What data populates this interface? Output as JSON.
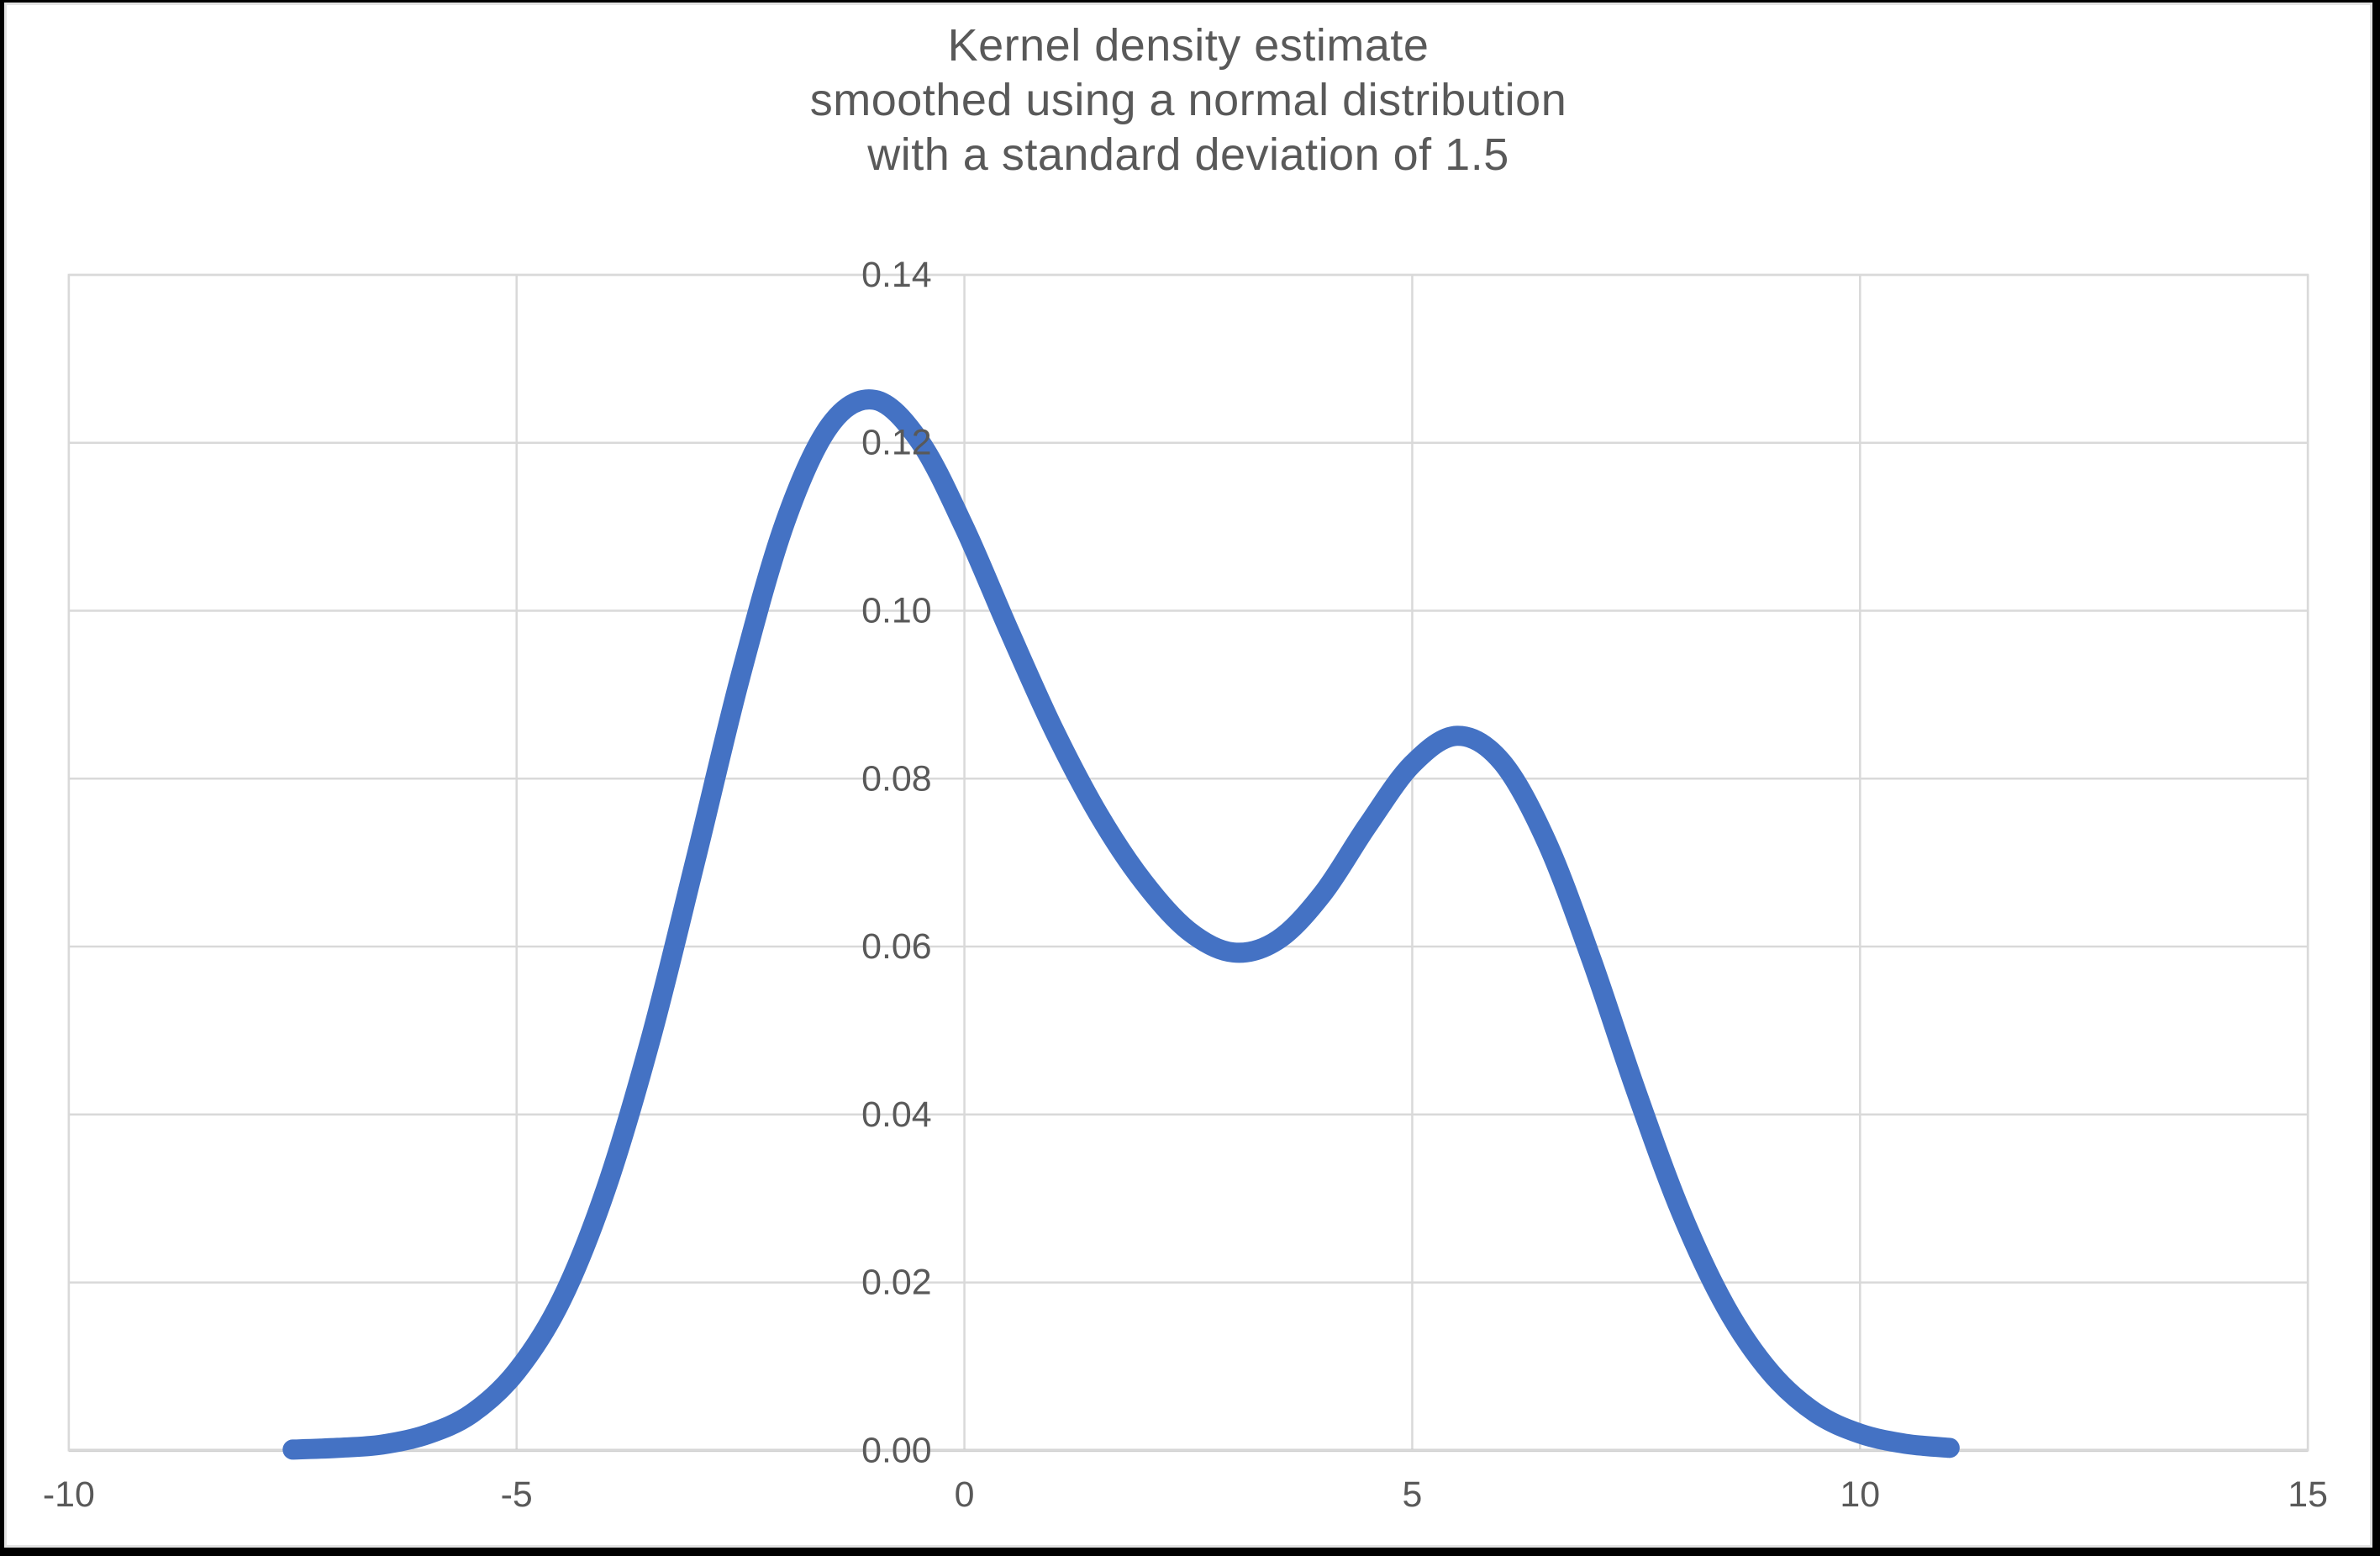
{
  "window": {
    "outer_border_color": "#000000",
    "inner_border_color": "#e3e3e3",
    "chart_background": "#ffffff"
  },
  "title": {
    "lines": [
      "Kernel density estimate",
      "smoothed using a normal distribution",
      "with a standard deviation of 1.5"
    ],
    "color": "#595959"
  },
  "axes": {
    "gridline_color": "#d9d9d9",
    "axis_line_color": "#bfbfbf",
    "tick_label_color": "#595959"
  },
  "chart_data": {
    "type": "line",
    "title": "Kernel density estimate smoothed using a normal distribution with a standard deviation of 1.5",
    "xlabel": "",
    "ylabel": "",
    "xlim": [
      -10,
      15
    ],
    "ylim": [
      0,
      0.14
    ],
    "x_ticks": [
      "-10",
      "-5",
      "0",
      "5",
      "10",
      "15"
    ],
    "y_ticks": [
      "0.00",
      "0.02",
      "0.04",
      "0.06",
      "0.08",
      "0.10",
      "0.12",
      "0.14"
    ],
    "grid": true,
    "legend": "none",
    "series": [
      {
        "name": "kernel-density-estimate",
        "color": "#4472c4",
        "stroke_width": 24,
        "points": [
          [
            -7.5,
            0.0001
          ],
          [
            -7.0,
            0.0003
          ],
          [
            -6.5,
            0.0007
          ],
          [
            -6.0,
            0.0019
          ],
          [
            -5.5,
            0.0044
          ],
          [
            -5.0,
            0.0094
          ],
          [
            -4.5,
            0.0179
          ],
          [
            -4.0,
            0.0312
          ],
          [
            -3.5,
            0.0491
          ],
          [
            -3.0,
            0.0704
          ],
          [
            -2.5,
            0.0922
          ],
          [
            -2.0,
            0.1106
          ],
          [
            -1.5,
            0.1221
          ],
          [
            -1.0,
            0.1251
          ],
          [
            -0.5,
            0.1202
          ],
          [
            0.0,
            0.1099
          ],
          [
            0.5,
            0.0976
          ],
          [
            1.0,
            0.0858
          ],
          [
            1.5,
            0.0757
          ],
          [
            2.0,
            0.0677
          ],
          [
            2.5,
            0.0619
          ],
          [
            3.0,
            0.0593
          ],
          [
            3.5,
            0.0608
          ],
          [
            4.0,
            0.0663
          ],
          [
            4.5,
            0.0744
          ],
          [
            5.0,
            0.0817
          ],
          [
            5.5,
            0.0851
          ],
          [
            6.0,
            0.082
          ],
          [
            6.5,
            0.0725
          ],
          [
            7.0,
            0.0585
          ],
          [
            7.5,
            0.0428
          ],
          [
            8.0,
            0.0284
          ],
          [
            8.5,
            0.0171
          ],
          [
            9.0,
            0.0093
          ],
          [
            9.5,
            0.0045
          ],
          [
            10.0,
            0.002
          ],
          [
            10.5,
            0.0008
          ],
          [
            11.0,
            0.0003
          ]
        ]
      }
    ]
  }
}
